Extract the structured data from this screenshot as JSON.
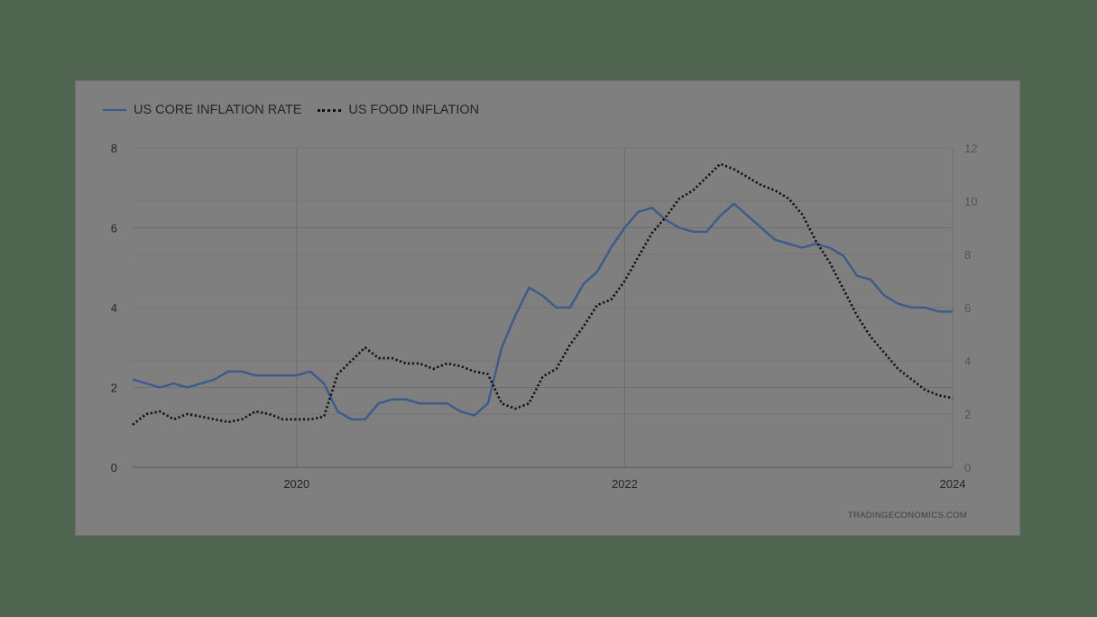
{
  "chart_data": {
    "type": "line",
    "title": "",
    "legend": {
      "placement": "top-left"
    },
    "x_ticks": [
      "2020",
      "2022",
      "2024"
    ],
    "x_range": [
      2019.0,
      2024.0
    ],
    "left_axis": {
      "ylim": [
        0,
        8
      ],
      "ticks": [
        0,
        2,
        4,
        6,
        8
      ]
    },
    "right_axis": {
      "ylim": [
        0,
        12
      ],
      "ticks": [
        0,
        2,
        4,
        6,
        8,
        10,
        12
      ]
    },
    "series": [
      {
        "name": "US CORE INFLATION RATE",
        "axis": "left",
        "style": "solid",
        "color": "#3d5a8c",
        "start": 2019.0,
        "step_months": 1,
        "values": [
          2.2,
          2.1,
          2.0,
          2.1,
          2.0,
          2.1,
          2.2,
          2.4,
          2.4,
          2.3,
          2.3,
          2.3,
          2.3,
          2.4,
          2.1,
          1.4,
          1.2,
          1.2,
          1.6,
          1.7,
          1.7,
          1.6,
          1.6,
          1.6,
          1.4,
          1.3,
          1.6,
          3.0,
          3.8,
          4.5,
          4.3,
          4.0,
          4.0,
          4.6,
          4.9,
          5.5,
          6.0,
          6.4,
          6.5,
          6.2,
          6.0,
          5.9,
          5.9,
          6.3,
          6.6,
          6.3,
          6.0,
          5.7,
          5.6,
          5.5,
          5.6,
          5.5,
          5.3,
          4.8,
          4.7,
          4.3,
          4.1,
          4.0,
          4.0,
          3.9,
          3.9
        ]
      },
      {
        "name": "US FOOD INFLATION",
        "axis": "right",
        "style": "dotted",
        "color": "#111111",
        "start": 2019.0,
        "step_months": 1,
        "values": [
          1.6,
          2.0,
          2.1,
          1.8,
          2.0,
          1.9,
          1.8,
          1.7,
          1.8,
          2.1,
          2.0,
          1.8,
          1.8,
          1.8,
          1.9,
          3.5,
          4.0,
          4.5,
          4.1,
          4.1,
          3.9,
          3.9,
          3.7,
          3.9,
          3.8,
          3.6,
          3.5,
          2.4,
          2.2,
          2.4,
          3.4,
          3.7,
          4.6,
          5.3,
          6.1,
          6.3,
          7.0,
          7.9,
          8.8,
          9.4,
          10.1,
          10.4,
          10.9,
          11.4,
          11.2,
          10.9,
          10.6,
          10.4,
          10.1,
          9.5,
          8.5,
          7.7,
          6.7,
          5.7,
          4.9,
          4.3,
          3.7,
          3.3,
          2.9,
          2.7,
          2.6
        ]
      }
    ]
  },
  "watermark": "TRADINGECONOMICS.COM"
}
